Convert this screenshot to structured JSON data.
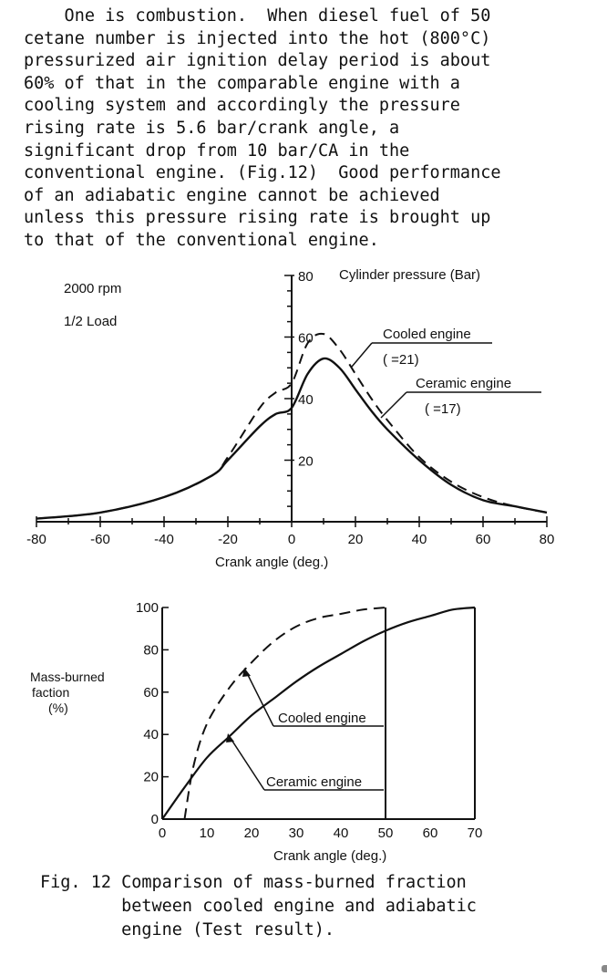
{
  "paragraph": {
    "lines": [
      "    One is combustion.  When diesel fuel of 50",
      "cetane number is injected into the hot (800°C)",
      "pressurized air ignition delay period is about",
      "60% of that in the comparable engine with a",
      "cooling system and accordingly the pressure",
      "rising rate is 5.6 bar/crank angle, a",
      "significant drop from 10 bar/CA in the",
      "conventional engine. (Fig.12)  Good performance",
      "of an adiabatic engine cannot be achieved",
      "unless this pressure rising rate is brought up",
      "to that of the conventional engine."
    ]
  },
  "chart_data": [
    {
      "type": "line",
      "notes": [
        "2000 rpm",
        "1/2 Load"
      ],
      "ylabel": "Cylinder pressure (Bar)",
      "xlabel": "Crank angle (deg.)",
      "xlim": [
        -80,
        80
      ],
      "ylim": [
        0,
        80
      ],
      "x_ticks": [
        "-80",
        "-60",
        "-40",
        "-20",
        "0",
        "20",
        "40",
        "60",
        "80"
      ],
      "y_ticks": [
        "20",
        "40",
        "60",
        "80"
      ],
      "grid": false,
      "series": [
        {
          "name": "Cooled engine",
          "sub_label": "(  =21)",
          "style": "dashed",
          "x": [
            -80,
            -60,
            -40,
            -25,
            -20,
            -10,
            -5,
            0,
            5,
            10,
            15,
            20,
            25,
            30,
            40,
            50,
            60,
            70,
            80
          ],
          "y": [
            1,
            3,
            8,
            15,
            21,
            37,
            42,
            45,
            58,
            61,
            56,
            48,
            40,
            33,
            21,
            13,
            8,
            5,
            3
          ]
        },
        {
          "name": "Ceramic engine",
          "sub_label": "(  =17)",
          "style": "solid",
          "x": [
            -80,
            -60,
            -40,
            -25,
            -20,
            -10,
            -5,
            0,
            5,
            10,
            15,
            20,
            25,
            30,
            40,
            50,
            60,
            70,
            80
          ],
          "y": [
            1,
            3,
            8,
            15,
            20,
            31,
            35,
            37,
            48,
            53,
            50,
            43,
            36,
            30,
            20,
            12,
            7,
            5,
            3
          ]
        }
      ]
    },
    {
      "type": "line",
      "ylabel": [
        "Mass-burned",
        "faction",
        "(%)"
      ],
      "xlabel": "Crank angle (deg.)",
      "xlim": [
        0,
        70
      ],
      "ylim": [
        0,
        100
      ],
      "x_ticks": [
        "0",
        "10",
        "20",
        "30",
        "40",
        "50",
        "60",
        "70"
      ],
      "y_ticks": [
        "0",
        "20",
        "40",
        "60",
        "80",
        "100"
      ],
      "grid": false,
      "series": [
        {
          "name": "Cooled engine",
          "style": "dashed",
          "end_x": 50,
          "x": [
            5,
            7,
            10,
            15,
            20,
            25,
            30,
            35,
            40,
            45,
            50
          ],
          "y": [
            0,
            25,
            45,
            62,
            74,
            84,
            91,
            95,
            97,
            99,
            100
          ]
        },
        {
          "name": "Ceramic engine",
          "style": "solid",
          "end_x": 70,
          "x": [
            0,
            5,
            10,
            15,
            20,
            25,
            30,
            35,
            40,
            45,
            50,
            55,
            60,
            65,
            70
          ],
          "y": [
            0,
            15,
            29,
            39,
            49,
            57,
            65,
            72,
            78,
            84,
            89,
            93,
            96,
            99,
            100
          ]
        }
      ]
    }
  ],
  "caption": {
    "lines": [
      "Fig. 12 Comparison of mass-burned fraction",
      "        between cooled engine and adiabatic",
      "        engine (Test result)."
    ]
  }
}
